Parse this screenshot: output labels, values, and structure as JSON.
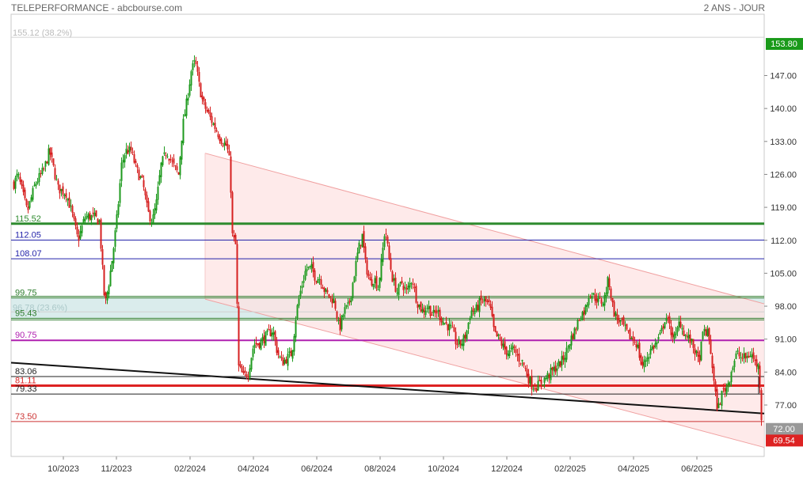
{
  "header": {
    "title": "TELEPERFORMANCE - abcbourse.com",
    "period": "2 ANS - JOUR"
  },
  "chart_data": {
    "type": "candlestick",
    "y_ticks": [
      "147.00",
      "140.00",
      "133.00",
      "126.00",
      "119.00",
      "112.00",
      "105.00",
      "98.00",
      "91.00",
      "84.00",
      "77.00"
    ],
    "y_tick_values": [
      147,
      140,
      133,
      126,
      119,
      112,
      105,
      98,
      91,
      84,
      77
    ],
    "x_ticks": [
      "10/2023",
      "11/2023",
      "02/2024",
      "04/2024",
      "06/2024",
      "08/2024",
      "10/2024",
      "12/2024",
      "02/2025",
      "04/2025",
      "06/2025"
    ],
    "x_tick_index": [
      80,
      147,
      240,
      320,
      400,
      480,
      560,
      640,
      720,
      800,
      880
    ],
    "fib_levels": [
      {
        "label": "155.12  (38.2%)",
        "value": 155.12,
        "color": "#bbbbbb"
      },
      {
        "label": "96.78  (23.6%)",
        "value": 96.78,
        "color": "#aac8c8"
      }
    ],
    "levels": [
      {
        "label": "115.52",
        "value": 115.52,
        "color": "#2e8b2e",
        "width": 3
      },
      {
        "label": "112.05",
        "value": 112.05,
        "color": "#2323aa",
        "width": 1
      },
      {
        "label": "108.07",
        "value": 108.07,
        "color": "#2323aa",
        "width": 1
      },
      {
        "label": "99.75",
        "value": 99.75,
        "color": "#2e7d2e",
        "width": 1
      },
      {
        "label": "95.43",
        "value": 95.43,
        "color": "#2e7d2e",
        "width": 1
      },
      {
        "label": "90.75",
        "value": 90.75,
        "color": "#b020b0",
        "width": 2
      },
      {
        "label": "83.06",
        "value": 83.06,
        "color": "#222222",
        "width": 1
      },
      {
        "label": "81.11",
        "value": 81.11,
        "color": "#dd2222",
        "width": 3
      },
      {
        "label": "79.33",
        "value": 79.33,
        "color": "#222222",
        "width": 1
      },
      {
        "label": "73.50",
        "value": 73.5,
        "color": "#cc3333",
        "width": 1
      }
    ],
    "zone": {
      "top": 99.75,
      "bottom": 95.43,
      "color": "#cde6e6"
    },
    "channel": {
      "upper": [
        [
          259,
          130.5
        ],
        [
          965,
          98.5
        ]
      ],
      "lower": [
        [
          259,
          99.5
        ],
        [
          965,
          68.0
        ]
      ],
      "color": "#f0a0a0"
    },
    "trendline": {
      "points": [
        [
          14,
          86.0
        ],
        [
          965,
          75.2
        ]
      ],
      "color": "#111111"
    },
    "price_tags": [
      {
        "label": "153.80",
        "value": 153.8,
        "color": "#1a9a1a"
      },
      {
        "label": "72.00",
        "value": 72.0,
        "color": "#999999"
      },
      {
        "label": "69.54",
        "value": 69.54,
        "color": "#dd2222"
      }
    ],
    "key_points": [
      [
        17,
        124
      ],
      [
        22,
        126
      ],
      [
        34,
        118
      ],
      [
        44,
        124
      ],
      [
        55,
        127
      ],
      [
        62,
        131
      ],
      [
        73,
        123
      ],
      [
        83,
        122
      ],
      [
        90,
        118
      ],
      [
        98,
        112
      ],
      [
        107,
        117
      ],
      [
        118,
        117
      ],
      [
        125,
        116
      ],
      [
        132,
        98
      ],
      [
        137,
        103
      ],
      [
        142,
        109
      ],
      [
        148,
        118
      ],
      [
        153,
        128
      ],
      [
        158,
        131
      ],
      [
        165,
        131
      ],
      [
        172,
        127
      ],
      [
        180,
        124
      ],
      [
        186,
        118
      ],
      [
        192,
        116
      ],
      [
        197,
        120
      ],
      [
        203,
        128
      ],
      [
        210,
        131
      ],
      [
        218,
        128
      ],
      [
        225,
        126
      ],
      [
        230,
        136
      ],
      [
        235,
        141
      ],
      [
        241,
        148
      ],
      [
        246,
        150
      ],
      [
        251,
        145
      ],
      [
        256,
        141
      ],
      [
        262,
        139
      ],
      [
        268,
        137
      ],
      [
        274,
        135
      ],
      [
        280,
        133
      ],
      [
        286,
        132
      ],
      [
        290,
        128
      ],
      [
        293,
        113
      ],
      [
        297,
        111
      ],
      [
        301,
        85
      ],
      [
        307,
        83
      ],
      [
        313,
        84
      ],
      [
        320,
        90
      ],
      [
        326,
        90
      ],
      [
        332,
        91
      ],
      [
        338,
        92
      ],
      [
        344,
        93
      ],
      [
        350,
        88
      ],
      [
        356,
        86
      ],
      [
        362,
        87
      ],
      [
        368,
        88
      ],
      [
        374,
        97
      ],
      [
        380,
        102
      ],
      [
        386,
        106
      ],
      [
        393,
        106
      ],
      [
        398,
        104
      ],
      [
        404,
        104
      ],
      [
        410,
        101
      ],
      [
        416,
        100
      ],
      [
        422,
        99
      ],
      [
        428,
        93
      ],
      [
        434,
        97
      ],
      [
        440,
        98
      ],
      [
        446,
        104
      ],
      [
        452,
        110
      ],
      [
        457,
        113
      ],
      [
        461,
        107
      ],
      [
        467,
        103
      ],
      [
        472,
        104
      ],
      [
        477,
        102
      ],
      [
        481,
        107
      ],
      [
        486,
        115
      ],
      [
        490,
        109
      ],
      [
        495,
        104
      ],
      [
        501,
        101
      ],
      [
        507,
        103
      ],
      [
        513,
        101
      ],
      [
        520,
        104
      ],
      [
        526,
        99
      ],
      [
        533,
        97
      ],
      [
        540,
        98
      ],
      [
        546,
        96
      ],
      [
        552,
        97
      ],
      [
        558,
        95
      ],
      [
        564,
        94
      ],
      [
        570,
        93
      ],
      [
        576,
        90
      ],
      [
        582,
        90
      ],
      [
        588,
        92
      ],
      [
        594,
        97
      ],
      [
        600,
        97
      ],
      [
        606,
        99
      ],
      [
        612,
        99
      ],
      [
        618,
        98
      ],
      [
        624,
        92
      ],
      [
        630,
        91
      ],
      [
        636,
        89
      ],
      [
        642,
        88
      ],
      [
        648,
        89
      ],
      [
        654,
        87
      ],
      [
        660,
        86
      ],
      [
        666,
        83
      ],
      [
        672,
        81
      ],
      [
        678,
        81
      ],
      [
        684,
        82
      ],
      [
        690,
        83
      ],
      [
        696,
        84
      ],
      [
        702,
        85
      ],
      [
        708,
        86
      ],
      [
        714,
        88
      ],
      [
        720,
        91
      ],
      [
        726,
        93
      ],
      [
        732,
        96
      ],
      [
        738,
        97
      ],
      [
        744,
        101
      ],
      [
        750,
        100
      ],
      [
        756,
        99
      ],
      [
        762,
        99
      ],
      [
        768,
        104
      ],
      [
        774,
        97
      ],
      [
        780,
        95
      ],
      [
        786,
        94
      ],
      [
        792,
        92
      ],
      [
        798,
        91
      ],
      [
        804,
        90
      ],
      [
        810,
        85
      ],
      [
        816,
        87
      ],
      [
        822,
        89
      ],
      [
        828,
        90
      ],
      [
        834,
        92
      ],
      [
        840,
        96
      ],
      [
        846,
        93
      ],
      [
        852,
        91
      ],
      [
        858,
        95
      ],
      [
        864,
        92
      ],
      [
        870,
        91
      ],
      [
        876,
        89
      ],
      [
        882,
        86
      ],
      [
        888,
        93
      ],
      [
        894,
        92
      ],
      [
        898,
        87
      ],
      [
        902,
        80
      ],
      [
        906,
        76
      ],
      [
        912,
        80
      ],
      [
        918,
        81
      ],
      [
        924,
        85
      ],
      [
        930,
        88
      ],
      [
        936,
        87
      ],
      [
        942,
        87
      ],
      [
        948,
        88
      ],
      [
        953,
        86
      ],
      [
        958,
        85
      ],
      [
        962,
        71
      ]
    ]
  }
}
